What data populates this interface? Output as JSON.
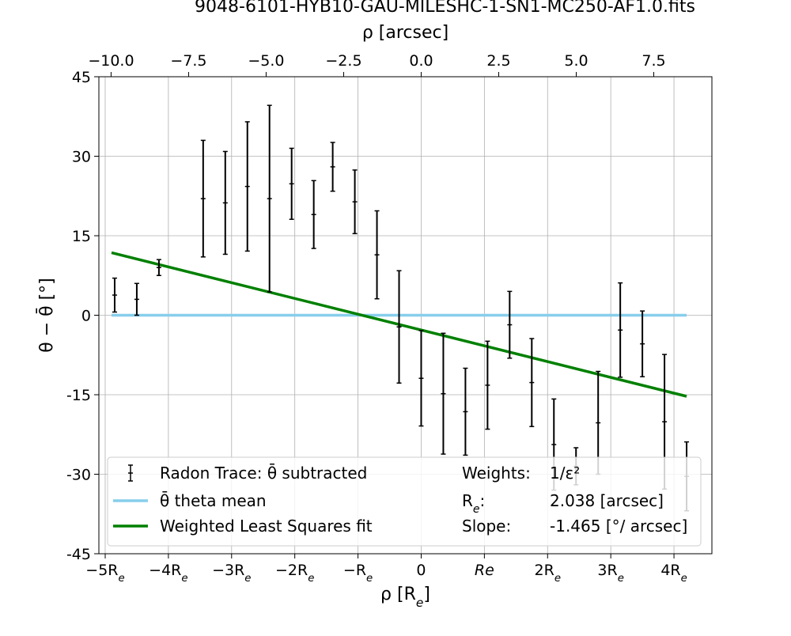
{
  "chart_data": {
    "type": "scatter",
    "title": "9048-6101-HYB10-GAU-MILESHC-1-SN1-MC250-AF1.0.fits",
    "xlabel": "ρ [R_e]",
    "ylabel": "θ − θ̄ [°]",
    "top_xlabel": "ρ [arcsec]",
    "xlim": [
      -5.1,
      4.6
    ],
    "ylim": [
      -45,
      45
    ],
    "grid": true,
    "legend_position": "lower-left",
    "x_ticks": [
      {
        "value": -5,
        "label": "−5R_e"
      },
      {
        "value": -4,
        "label": "−4R_e"
      },
      {
        "value": -3,
        "label": "−3R_e"
      },
      {
        "value": -2,
        "label": "−2R_e"
      },
      {
        "value": -1,
        "label": "−R_e"
      },
      {
        "value": 0,
        "label": "0"
      },
      {
        "value": 1,
        "label": "Re"
      },
      {
        "value": 2,
        "label": "2R_e"
      },
      {
        "value": 3,
        "label": "3R_e"
      },
      {
        "value": 4,
        "label": "4R_e"
      }
    ],
    "top_x_ticks": [
      {
        "value": -10.0,
        "label": "−10.0"
      },
      {
        "value": -7.5,
        "label": "−7.5"
      },
      {
        "value": -5.0,
        "label": "−5.0"
      },
      {
        "value": -2.5,
        "label": "−2.5"
      },
      {
        "value": 0.0,
        "label": "0.0"
      },
      {
        "value": 2.5,
        "label": "2.5"
      },
      {
        "value": 5.0,
        "label": "5.0"
      },
      {
        "value": 7.5,
        "label": "7.5"
      }
    ],
    "y_ticks": [
      {
        "value": 45,
        "label": "45"
      },
      {
        "value": 30,
        "label": "30"
      },
      {
        "value": 15,
        "label": "15"
      },
      {
        "value": 0,
        "label": "0"
      },
      {
        "value": -15,
        "label": "-15"
      },
      {
        "value": -30,
        "label": "-30"
      },
      {
        "value": -45,
        "label": "-45"
      }
    ],
    "series": [
      {
        "name": "Radon Trace: θ̄ subtracted",
        "type": "errorbar",
        "color": "#000000",
        "x": [
          -4.85,
          -4.5,
          -4.15,
          -3.45,
          -3.1,
          -2.75,
          -2.4,
          -2.05,
          -1.7,
          -1.4,
          -1.05,
          -0.7,
          -0.35,
          0.0,
          0.35,
          0.7,
          1.05,
          1.4,
          1.75,
          2.1,
          2.45,
          2.8,
          3.15,
          3.5,
          3.85,
          4.2
        ],
        "y": [
          3.8,
          3.0,
          9.0,
          22.0,
          21.2,
          24.3,
          22.0,
          24.8,
          19.0,
          28.0,
          21.4,
          11.4,
          -2.2,
          -11.9,
          -14.8,
          -18.2,
          -13.2,
          -1.8,
          -12.7,
          -24.4,
          -28.5,
          -20.3,
          -2.8,
          -5.4,
          -20.1,
          -30.4
        ],
        "yerr": [
          3.2,
          3.0,
          1.5,
          11.0,
          9.7,
          12.2,
          17.6,
          6.7,
          6.4,
          4.6,
          6.0,
          8.3,
          10.6,
          9.0,
          11.4,
          8.2,
          8.3,
          6.3,
          8.3,
          8.6,
          3.5,
          9.7,
          8.9,
          6.2,
          12.7,
          6.5
        ]
      },
      {
        "name": "θ̄ theta mean",
        "type": "line",
        "color": "#87ceeb",
        "x": [
          -4.9,
          4.2
        ],
        "y": [
          0,
          0
        ]
      },
      {
        "name": "Weighted Least Squares fit",
        "type": "line",
        "color": "#008000",
        "x": [
          -4.9,
          4.2
        ],
        "y": [
          11.8,
          -15.3
        ]
      }
    ],
    "legend_entries": [
      {
        "label": "Radon Trace: θ̄ subtracted",
        "marker": "errorbar",
        "color": "#000000"
      },
      {
        "label": "θ̄ theta mean",
        "marker": "line",
        "color": "#87ceeb"
      },
      {
        "label": "Weighted Least Squares fit",
        "marker": "line",
        "color": "#008000"
      }
    ],
    "annotations": [
      {
        "key": "Weights:",
        "value": "1/ε²"
      },
      {
        "key": "R_e:",
        "value": "2.038 [arcsec]"
      },
      {
        "key": "Slope:",
        "value": "-1.465 [°/ arcsec]"
      }
    ]
  }
}
